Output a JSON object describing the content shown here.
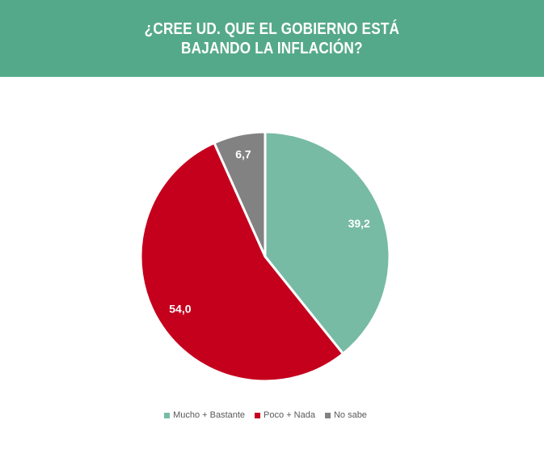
{
  "title": {
    "line1": "¿CREE UD. QUE EL GOBIERNO ESTÁ",
    "line2": "BAJANDO LA INFLACIÓN?"
  },
  "colors": {
    "header_bg": "#55a98b",
    "mucho_bastante": "#77bba5",
    "poco_nada": "#c4001d",
    "no_sabe": "#828282"
  },
  "chart_data": {
    "type": "pie",
    "title": "¿CREE UD. QUE EL GOBIERNO ESTÁ BAJANDO LA INFLACIÓN?",
    "start": "12 o'clock",
    "direction": "clockwise",
    "legend_position": "bottom",
    "slices": [
      {
        "name": "Mucho + Bastante",
        "value": 39.2,
        "label": "39,2",
        "color": "#77bba5"
      },
      {
        "name": "Poco + Nada",
        "value": 54.0,
        "label": "54,0",
        "color": "#c4001d"
      },
      {
        "name": "No sabe",
        "value": 6.7,
        "label": "6,7",
        "color": "#828282"
      }
    ]
  }
}
